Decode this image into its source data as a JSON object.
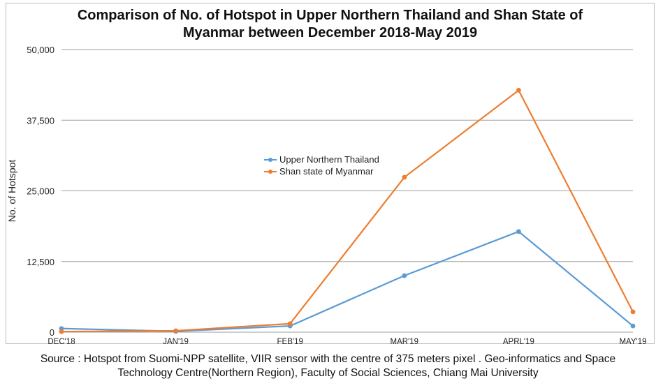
{
  "chart_data": {
    "type": "line",
    "title": "Comparison of No. of Hotspot in Upper Northern Thailand and Shan State of\nMyanmar between December 2018-May 2019",
    "ylabel": "No. of Hotspot",
    "xlabel": "",
    "categories": [
      "DEC'18",
      "JAN'19",
      "FEB'19",
      "MAR'19",
      "APRL'19",
      "MAY'19"
    ],
    "ylim": [
      0,
      50000
    ],
    "yticks": [
      0,
      12500,
      25000,
      37500,
      50000
    ],
    "ytick_labels": [
      "0",
      "12,500",
      "25,000",
      "37,500",
      "50,000"
    ],
    "grid": true,
    "legend_position": "center",
    "series": [
      {
        "name": "Upper Northern Thailand",
        "color": "#5b9bd5",
        "values": [
          650,
          150,
          1100,
          10000,
          17800,
          1100
        ]
      },
      {
        "name": "Shan state of Myanmar",
        "color": "#ed7d31",
        "values": [
          100,
          250,
          1500,
          27400,
          42800,
          3600
        ]
      }
    ]
  },
  "source_note": "Source : Hotspot from Suomi-NPP satellite, VIIR sensor with the centre of 375 meters pixel . Geo-informatics and Space\nTechnology Centre(Northern Region), Faculty of Social Sciences, Chiang Mai University"
}
